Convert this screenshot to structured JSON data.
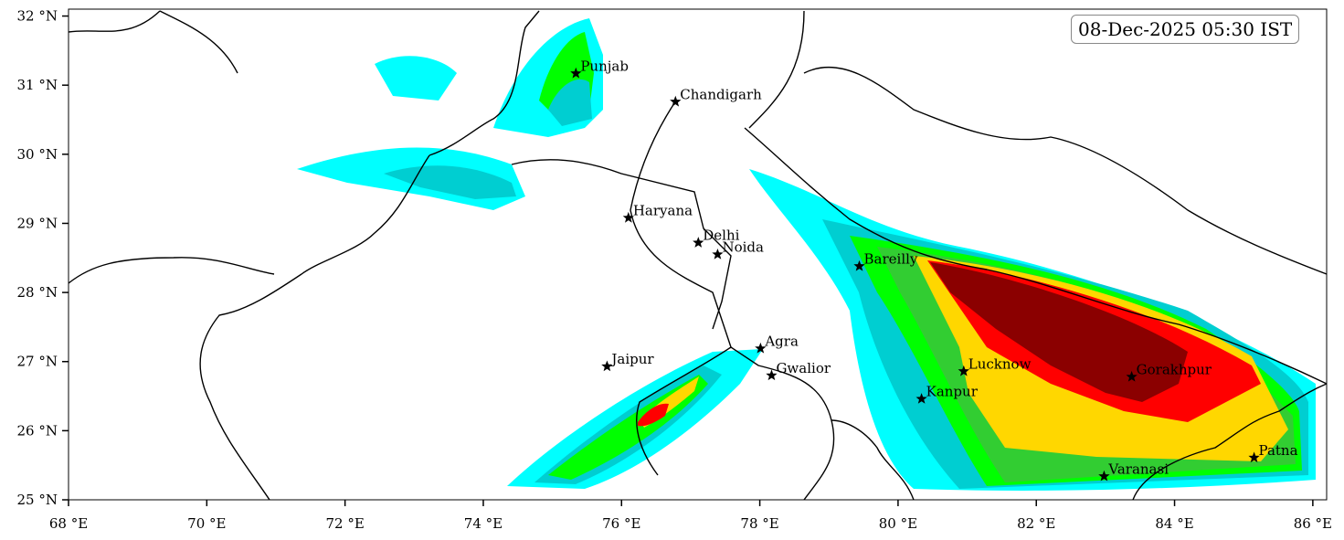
{
  "map": {
    "timestamp": "08-Dec-2025 05:30 IST",
    "xlim": [
      68,
      86.2
    ],
    "ylim": [
      25,
      32.1
    ],
    "xticks": [
      {
        "value": 68,
        "label": "68 °E"
      },
      {
        "value": 70,
        "label": "70 °E"
      },
      {
        "value": 72,
        "label": "72 °E"
      },
      {
        "value": 74,
        "label": "74 °E"
      },
      {
        "value": 76,
        "label": "76 °E"
      },
      {
        "value": 78,
        "label": "78 °E"
      },
      {
        "value": 80,
        "label": "80 °E"
      },
      {
        "value": 82,
        "label": "82 °E"
      },
      {
        "value": 84,
        "label": "84 °E"
      },
      {
        "value": 86,
        "label": "86 °E"
      }
    ],
    "yticks": [
      {
        "value": 25,
        "label": "25 °N"
      },
      {
        "value": 26,
        "label": "26 °N"
      },
      {
        "value": 27,
        "label": "27 °N"
      },
      {
        "value": 28,
        "label": "28 °N"
      },
      {
        "value": 29,
        "label": "29 °N"
      },
      {
        "value": 30,
        "label": "30 °N"
      },
      {
        "value": 31,
        "label": "31 °N"
      },
      {
        "value": 32,
        "label": "32 °N"
      }
    ],
    "cities": [
      {
        "name": "Punjab",
        "lon": 75.34,
        "lat": 31.17
      },
      {
        "name": "Chandigarh",
        "lon": 76.78,
        "lat": 30.76
      },
      {
        "name": "Haryana",
        "lon": 76.1,
        "lat": 29.08
      },
      {
        "name": "Delhi",
        "lon": 77.11,
        "lat": 28.72
      },
      {
        "name": "Noida",
        "lon": 77.39,
        "lat": 28.55
      },
      {
        "name": "Bareilly",
        "lon": 79.44,
        "lat": 28.38
      },
      {
        "name": "Agra",
        "lon": 78.01,
        "lat": 27.19
      },
      {
        "name": "Jaipur",
        "lon": 75.79,
        "lat": 26.93
      },
      {
        "name": "Gwalior",
        "lon": 78.17,
        "lat": 26.8
      },
      {
        "name": "Lucknow",
        "lon": 80.95,
        "lat": 26.86
      },
      {
        "name": "Kanpur",
        "lon": 80.34,
        "lat": 26.46
      },
      {
        "name": "Gorakhpur",
        "lon": 83.38,
        "lat": 26.78
      },
      {
        "name": "Varanasi",
        "lon": 82.98,
        "lat": 25.34
      },
      {
        "name": "Patna",
        "lon": 85.15,
        "lat": 25.61
      }
    ]
  }
}
